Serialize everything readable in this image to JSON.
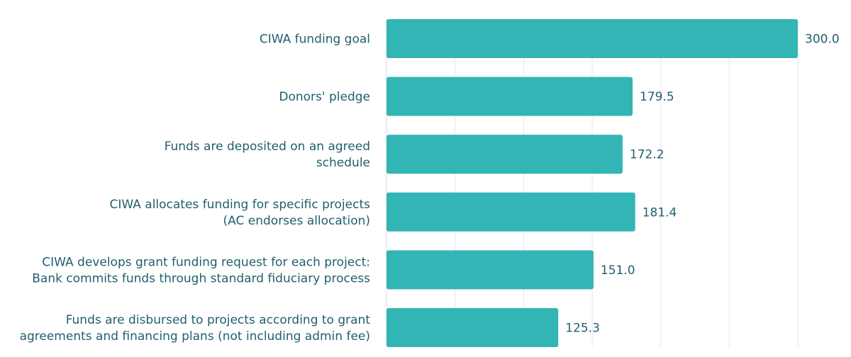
{
  "chart_data": {
    "type": "bar",
    "orientation": "horizontal",
    "title": "",
    "xlabel": "",
    "ylabel": "",
    "xlim": [
      0,
      300
    ],
    "grid": true,
    "bar_color": "#33b5b5",
    "text_color": "#1f5f6e",
    "categories": [
      [
        "CIWA funding goal"
      ],
      [
        "Donors' pledge"
      ],
      [
        "Funds are deposited on an agreed",
        "schedule"
      ],
      [
        "CIWA allocates funding for specific projects",
        "(AC endorses allocation)"
      ],
      [
        "CIWA develops grant funding request for each project:",
        "Bank commits funds through standard fiduciary process"
      ],
      [
        "Funds are disbursed to projects according to grant",
        "agreements and financing plans (not including admin fee)"
      ]
    ],
    "values": [
      300.0,
      179.5,
      172.2,
      181.4,
      151.0,
      125.3
    ],
    "value_labels": [
      "300.0",
      "179.5",
      "172.2",
      "181.4",
      "151.0",
      "125.3"
    ]
  }
}
